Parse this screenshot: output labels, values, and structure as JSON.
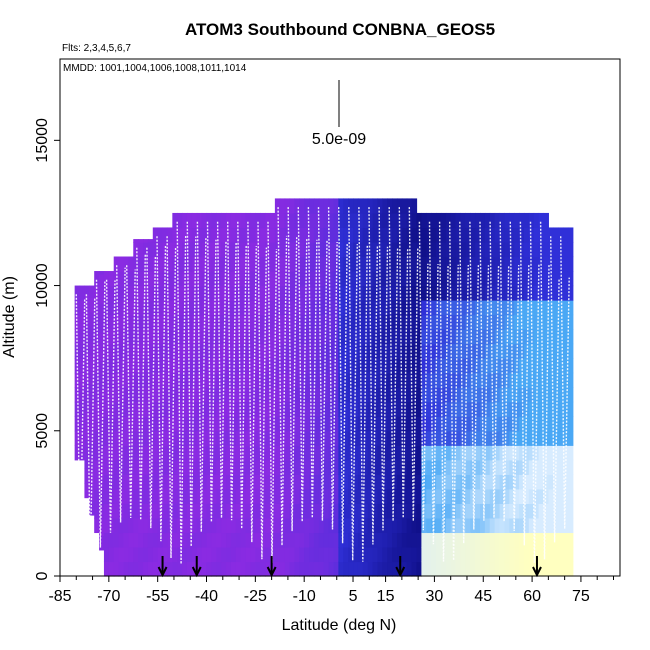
{
  "chart_data": {
    "type": "heatmap",
    "title": "ATOM3 Southbound CONBNA_GEOS5",
    "subtitle_flights": "Flts: 2,3,4,5,6,7",
    "subtitle_dates": "MMDD: 1001,1004,1006,1008,1011,1014",
    "scale_label": "5.0e-09",
    "xlabel": "Latitude (deg N)",
    "ylabel": "Altitude (m)",
    "xlim": [
      -85,
      87
    ],
    "ylim": [
      0,
      17800
    ],
    "x_ticks": [
      -85,
      -70,
      -55,
      -40,
      -25,
      -10,
      5,
      15,
      30,
      45,
      60,
      75
    ],
    "y_ticks": [
      0,
      5000,
      10000,
      15000
    ],
    "arrows_lat": [
      -53.5,
      -43,
      -20,
      19.5,
      61.5
    ],
    "top_envelope": [
      {
        "lat": -80.5,
        "alt": 10000
      },
      {
        "lat": -74.5,
        "alt": 10500
      },
      {
        "lat": -68.5,
        "alt": 11000
      },
      {
        "lat": -62.5,
        "alt": 11600
      },
      {
        "lat": -56.5,
        "alt": 12000
      },
      {
        "lat": -50.5,
        "alt": 12500
      },
      {
        "lat": -19.5,
        "alt": 13000
      },
      {
        "lat": 24.5,
        "alt": 12500
      },
      {
        "lat": 64.5,
        "alt": 12000
      },
      {
        "lat": 70.5,
        "alt": 12000
      }
    ],
    "colors": {
      "violet": "#8a2be2",
      "blue": "#3030d8",
      "navy": "#10108a",
      "sky": "#4aa8f5",
      "pale": "#d8ecff",
      "yellow": "#ffffc0",
      "profile": "#ffffff"
    },
    "grid": false,
    "legend": "none"
  }
}
